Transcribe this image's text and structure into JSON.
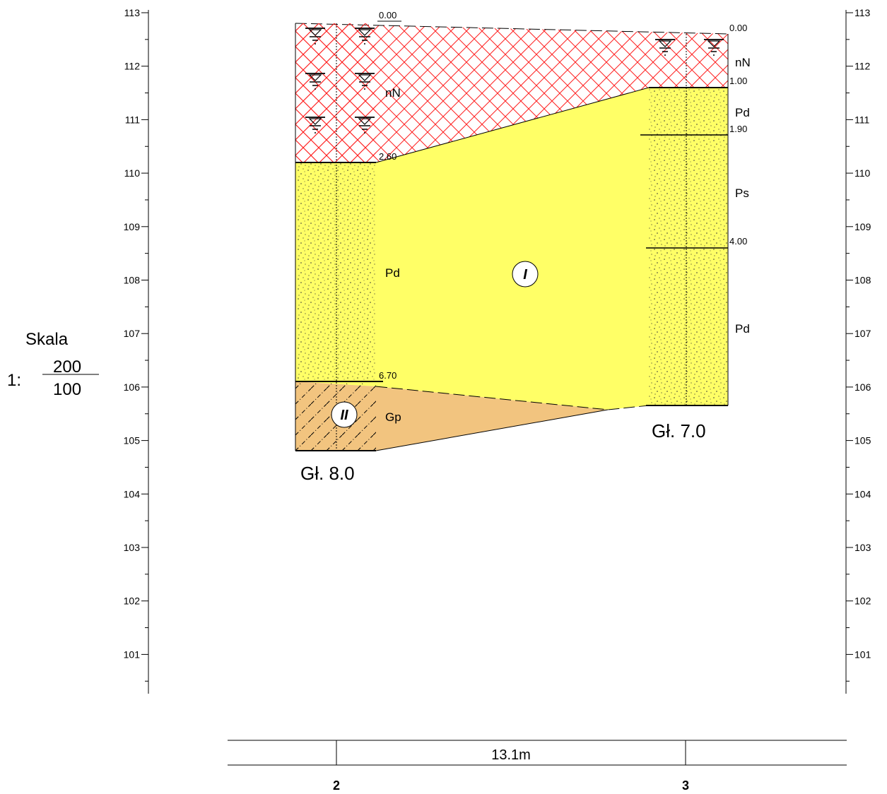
{
  "scale": {
    "title": "Skala",
    "prefix": "1:",
    "horizontal": "200",
    "vertical": "100"
  },
  "axis": {
    "labels": [
      "113",
      "112",
      "111",
      "110",
      "109",
      "108",
      "107",
      "106",
      "105",
      "104",
      "103",
      "102",
      "101"
    ]
  },
  "boreholes": [
    {
      "number": "2",
      "total_depth_label": "Gł. 8.0",
      "layers": [
        {
          "soil": "nN",
          "top_label": "0.00",
          "bottom_label": "2.60"
        },
        {
          "soil": "Pd",
          "bottom_label": "6.70"
        },
        {
          "soil": "Gp"
        }
      ]
    },
    {
      "number": "3",
      "total_depth_label": "Gł. 7.0",
      "layers": [
        {
          "soil": "nN",
          "top_label": "0.00",
          "bottom_label": "1.00"
        },
        {
          "soil": "Pd",
          "bottom_label": "1.90"
        },
        {
          "soil": "Ps",
          "bottom_label": "4.00"
        },
        {
          "soil": "Pd"
        }
      ]
    }
  ],
  "zones": {
    "zone1": "I",
    "zone2": "II"
  },
  "distance_label": "13.1m",
  "colors": {
    "fill_sand": "#ffff66",
    "fill_gravel": "#f2c47f",
    "hatch_fill": "#ff2020",
    "water_symbol": "#000000"
  }
}
